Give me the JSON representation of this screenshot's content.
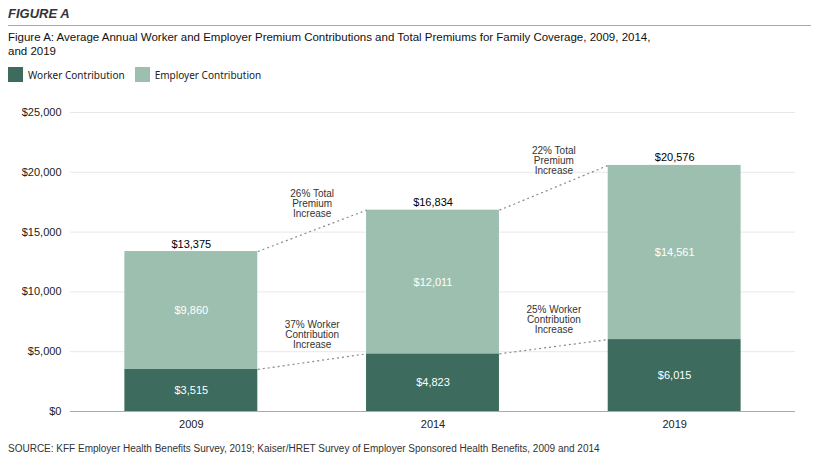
{
  "chart_data": {
    "type": "bar",
    "stacked": true,
    "title": "FIGURE A",
    "subtitle": "Figure A: Average Annual Worker and Employer Premium Contributions and Total Premiums for Family Coverage, 2009, 2014,\nand 2019",
    "source": "SOURCE: KFF Employer Health Benefits Survey, 2019; Kaiser/HRET Survey of Employer Sponsored Health Benefits, 2009 and 2014",
    "categories": [
      "2009",
      "2014",
      "2019"
    ],
    "series": [
      {
        "name": "Worker Contribution",
        "color": "#3d6b5e",
        "values": [
          3515,
          4823,
          6015
        ],
        "value_labels": [
          "$3,515",
          "$4,823",
          "$6,015"
        ],
        "annotations": [
          "37% Worker\nContribution\nIncrease",
          "25% Worker\nContribution\nIncrease"
        ]
      },
      {
        "name": "Employer Contribution",
        "color": "#9dbfb0",
        "values": [
          9860,
          12011,
          14561
        ],
        "value_labels": [
          "$9,860",
          "$12,011",
          "$14,561"
        ]
      }
    ],
    "totals": [
      13375,
      16834,
      20576
    ],
    "total_labels": [
      "$13,375",
      "$16,834",
      "$20,576"
    ],
    "total_annotations": [
      "26% Total\nPremium\nIncrease",
      "22% Total\nPremium\nIncrease"
    ],
    "data_labels": true,
    "legend": "top",
    "grid": true,
    "ylim": [
      0,
      25000
    ],
    "yticks": [
      {
        "value": 0,
        "label": "$0"
      },
      {
        "value": 5000,
        "label": "$5,000"
      },
      {
        "value": 10000,
        "label": "$10,000"
      },
      {
        "value": 15000,
        "label": "$15,000"
      },
      {
        "value": 20000,
        "label": "$20,000"
      },
      {
        "value": 25000,
        "label": "$25,000"
      }
    ]
  }
}
